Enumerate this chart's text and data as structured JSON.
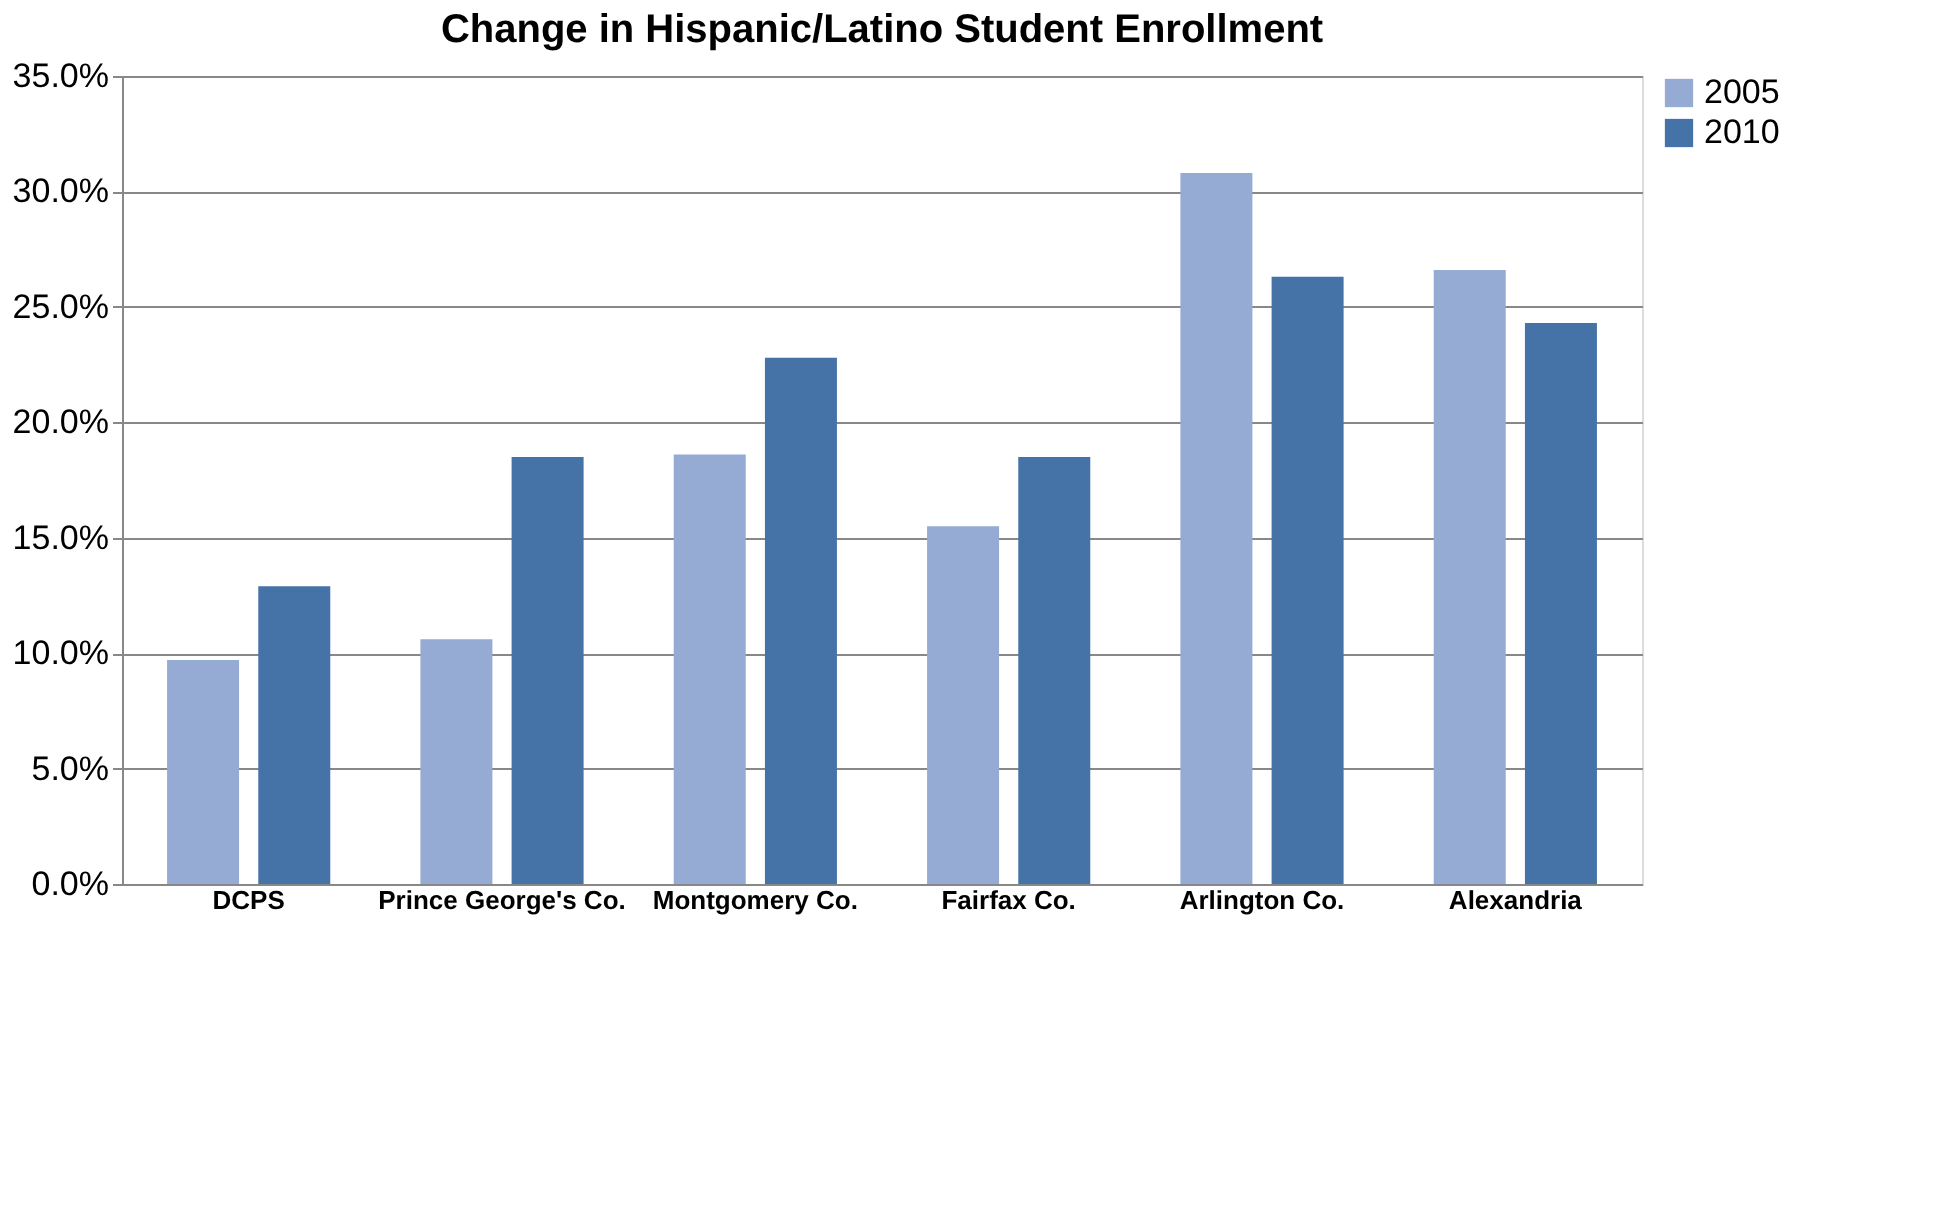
{
  "chart_data": {
    "type": "bar",
    "title": "Change in Hispanic/Latino Student Enrollment",
    "categories": [
      "DCPS",
      "Prince George's Co.",
      "Montgomery Co.",
      "Fairfax Co.",
      "Arlington Co.",
      "Alexandria"
    ],
    "series": [
      {
        "name": "2005",
        "color": "#95abd4",
        "values": [
          9.7,
          10.6,
          18.6,
          15.5,
          30.8,
          26.6
        ]
      },
      {
        "name": "2010",
        "color": "#4572a7",
        "values": [
          12.9,
          18.5,
          22.8,
          18.5,
          26.3,
          24.3
        ]
      }
    ],
    "ylim": [
      0,
      35
    ],
    "yticks": [
      {
        "value": 0,
        "label": "0.0%"
      },
      {
        "value": 5,
        "label": "5.0%"
      },
      {
        "value": 10,
        "label": "10.0%"
      },
      {
        "value": 15,
        "label": "15.0%"
      },
      {
        "value": 20,
        "label": "20.0%"
      },
      {
        "value": 25,
        "label": "25.0%"
      },
      {
        "value": 30,
        "label": "30.0%"
      },
      {
        "value": 35,
        "label": "35.0%"
      }
    ],
    "grid": "y",
    "legend": "top right"
  }
}
